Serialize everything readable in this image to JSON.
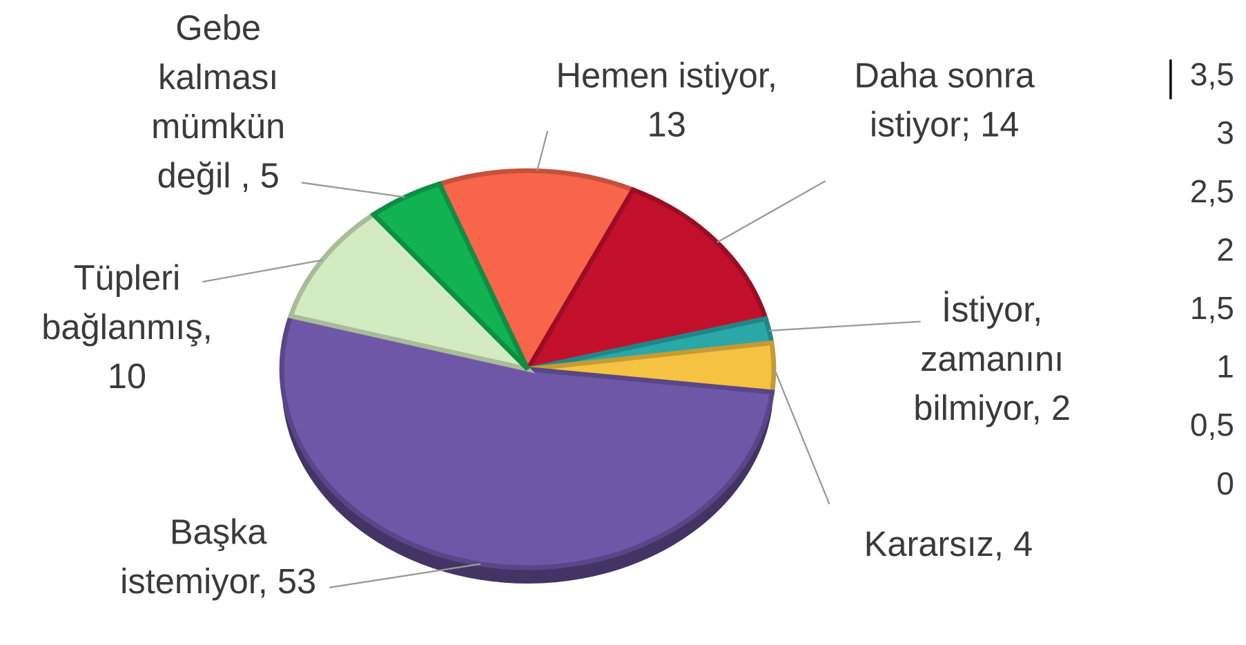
{
  "chart_data": {
    "type": "pie",
    "categories": [
      "Hemen istiyor, 13",
      "Daha sonra istiyor; 14",
      "İstiyor, zamanını bilmiyor, 2",
      "Kararsız, 4",
      "Başka istemiyor, 53",
      "Tüpleri bağlanmış, 10",
      "Gebe kalması mümkün değil , 5"
    ],
    "values": [
      13,
      14,
      2,
      4,
      53,
      10,
      5
    ],
    "colors": [
      "#f8654a",
      "#c2102c",
      "#2aa8a8",
      "#f5c242",
      "#6f57a8",
      "#d3ebc0",
      "#10b252"
    ],
    "ylim": [
      0,
      3.5
    ],
    "yticks": [
      0,
      {
        "value": 0.5,
        "label": "0,5"
      },
      1,
      {
        "value": 1.5,
        "label": "1,5"
      },
      2,
      {
        "value": 2.5,
        "label": "2,5"
      },
      3,
      {
        "value": 3.5,
        "label": "3,5"
      }
    ]
  }
}
